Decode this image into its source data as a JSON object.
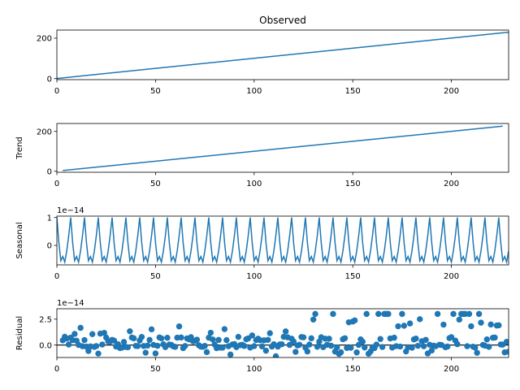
{
  "figure": {
    "title": "Observed"
  },
  "chart_data": [
    {
      "type": "line",
      "name": "observed",
      "title": "Observed",
      "ylabel": "",
      "xlim": [
        0,
        229
      ],
      "ylim": [
        -5,
        240
      ],
      "xticks": [
        0,
        50,
        100,
        150,
        200
      ],
      "yticks": [
        0,
        200
      ],
      "x_range": [
        0,
        229
      ],
      "line": {
        "x": [
          0,
          229
        ],
        "y": [
          0.5,
          229.5
        ]
      },
      "color": "#1f77b4"
    },
    {
      "type": "line",
      "name": "trend",
      "title": "",
      "ylabel": "Trend",
      "xlim": [
        0,
        229
      ],
      "ylim": [
        -5,
        240
      ],
      "xticks": [
        0,
        50,
        100,
        150,
        200
      ],
      "yticks": [
        0,
        200
      ],
      "line": {
        "x": [
          3,
          226
        ],
        "y": [
          3.5,
          226.5
        ]
      },
      "color": "#1f77b4"
    },
    {
      "type": "line",
      "name": "seasonal",
      "title": "",
      "ylabel": "Seasonal",
      "offset_text": "1e−14",
      "xlim": [
        0,
        229
      ],
      "ylim": [
        -0.7,
        1.05
      ],
      "xticks": [
        0,
        50,
        100,
        150,
        200
      ],
      "yticks": [
        0,
        1
      ],
      "period": 7,
      "pattern": [
        1.0,
        0.1,
        -0.55,
        -0.4,
        -0.6,
        -0.2,
        0.35
      ],
      "color": "#1f77b4"
    },
    {
      "type": "scatter",
      "name": "residual",
      "title": "",
      "ylabel": "Residual",
      "offset_text": "1e−14",
      "xlim": [
        0,
        229
      ],
      "ylim": [
        -1.2,
        3.5
      ],
      "xticks": [
        0,
        50,
        100,
        150,
        200
      ],
      "yticks": [
        0.0,
        2.5
      ],
      "ytick_format": "fixed1",
      "zero_line": true,
      "color": "#1f77b4"
    }
  ]
}
